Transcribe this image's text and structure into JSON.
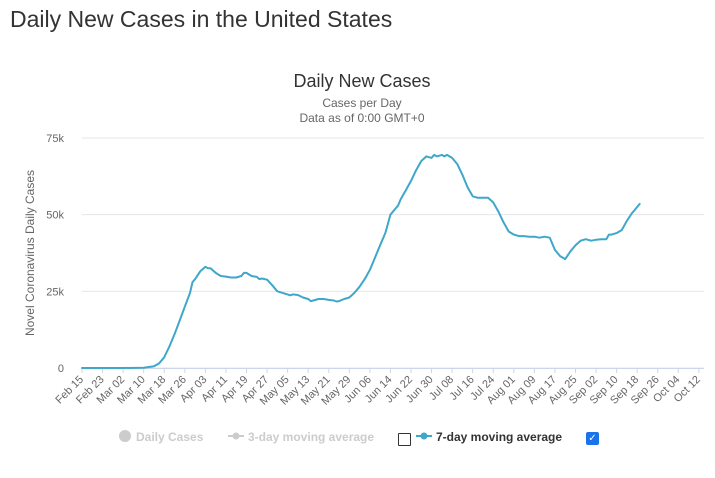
{
  "page": {
    "heading": "Daily New Cases in the United States"
  },
  "chart_data": {
    "type": "line",
    "title": "Daily New Cases",
    "subtitle_1": "Cases per Day",
    "subtitle_2": "Data as of 0:00 GMT+0",
    "ylabel": "Novel Coronavirus Daily Cases",
    "xlabel": "",
    "ylim": [
      0,
      75000
    ],
    "y_ticks": [
      0,
      25000,
      50000,
      75000
    ],
    "y_tick_labels": [
      "0",
      "25k",
      "50k",
      "75k"
    ],
    "x_tick_labels": [
      "Feb 15",
      "Feb 23",
      "Mar 02",
      "Mar 10",
      "Mar 18",
      "Mar 26",
      "Apr 03",
      "Apr 11",
      "Apr 19",
      "Apr 27",
      "May 05",
      "May 13",
      "May 21",
      "May 29",
      "Jun 06",
      "Jun 14",
      "Jun 22",
      "Jun 30",
      "Jul 08",
      "Jul 16",
      "Jul 24",
      "Aug 01",
      "Aug 09",
      "Aug 17",
      "Aug 25",
      "Sep 02",
      "Sep 10",
      "Sep 18",
      "Sep 26",
      "Oct 04",
      "Oct 12"
    ],
    "x_tick_day_index": [
      0,
      8,
      16,
      24,
      32,
      40,
      48,
      56,
      64,
      72,
      80,
      88,
      96,
      104,
      112,
      120,
      128,
      136,
      144,
      152,
      160,
      168,
      176,
      184,
      192,
      200,
      208,
      216,
      224,
      232,
      240
    ],
    "x_range_days": [
      0,
      242
    ],
    "grid": "horizontal",
    "series": [
      {
        "name": "7-day moving average",
        "color": "#3fa7c9",
        "points": [
          [
            0,
            0
          ],
          [
            8,
            0
          ],
          [
            16,
            0
          ],
          [
            24,
            100
          ],
          [
            28,
            600
          ],
          [
            30,
            1500
          ],
          [
            32,
            3500
          ],
          [
            34,
            7000
          ],
          [
            36,
            11000
          ],
          [
            38,
            15500
          ],
          [
            40,
            20000
          ],
          [
            42,
            24500
          ],
          [
            43,
            28000
          ],
          [
            44,
            29000
          ],
          [
            46,
            31500
          ],
          [
            48,
            33000
          ],
          [
            49,
            32500
          ],
          [
            50,
            32500
          ],
          [
            52,
            31000
          ],
          [
            54,
            30000
          ],
          [
            56,
            29800
          ],
          [
            58,
            29500
          ],
          [
            60,
            29500
          ],
          [
            62,
            30000
          ],
          [
            63,
            31000
          ],
          [
            64,
            31000
          ],
          [
            65,
            30500
          ],
          [
            66,
            30000
          ],
          [
            68,
            29700
          ],
          [
            69,
            29000
          ],
          [
            70,
            29200
          ],
          [
            72,
            28800
          ],
          [
            74,
            27000
          ],
          [
            76,
            25000
          ],
          [
            78,
            24500
          ],
          [
            80,
            24000
          ],
          [
            81,
            23700
          ],
          [
            82,
            24000
          ],
          [
            84,
            23800
          ],
          [
            86,
            23000
          ],
          [
            88,
            22500
          ],
          [
            89,
            21800
          ],
          [
            90,
            22000
          ],
          [
            92,
            22500
          ],
          [
            94,
            22500
          ],
          [
            96,
            22200
          ],
          [
            98,
            22000
          ],
          [
            99,
            21700
          ],
          [
            100,
            21800
          ],
          [
            102,
            22500
          ],
          [
            104,
            23000
          ],
          [
            106,
            24500
          ],
          [
            108,
            26500
          ],
          [
            110,
            29000
          ],
          [
            112,
            32000
          ],
          [
            114,
            36000
          ],
          [
            116,
            40000
          ],
          [
            118,
            44000
          ],
          [
            119,
            47000
          ],
          [
            120,
            50000
          ],
          [
            122,
            52000
          ],
          [
            123,
            53000
          ],
          [
            124,
            55000
          ],
          [
            126,
            58000
          ],
          [
            128,
            61000
          ],
          [
            130,
            64500
          ],
          [
            132,
            67500
          ],
          [
            134,
            69000
          ],
          [
            136,
            68500
          ],
          [
            137,
            69500
          ],
          [
            138,
            69000
          ],
          [
            140,
            69500
          ],
          [
            141,
            69000
          ],
          [
            142,
            69500
          ],
          [
            144,
            68500
          ],
          [
            146,
            66500
          ],
          [
            148,
            63000
          ],
          [
            150,
            59000
          ],
          [
            152,
            56000
          ],
          [
            154,
            55500
          ],
          [
            156,
            55500
          ],
          [
            158,
            55500
          ],
          [
            160,
            54000
          ],
          [
            162,
            51000
          ],
          [
            164,
            47500
          ],
          [
            166,
            44500
          ],
          [
            168,
            43500
          ],
          [
            170,
            43000
          ],
          [
            172,
            43000
          ],
          [
            174,
            42800
          ],
          [
            176,
            42800
          ],
          [
            178,
            42500
          ],
          [
            180,
            42800
          ],
          [
            182,
            42500
          ],
          [
            184,
            38500
          ],
          [
            186,
            36500
          ],
          [
            188,
            35500
          ],
          [
            190,
            38000
          ],
          [
            192,
            40000
          ],
          [
            194,
            41500
          ],
          [
            196,
            42000
          ],
          [
            198,
            41500
          ],
          [
            200,
            41800
          ],
          [
            202,
            42000
          ],
          [
            204,
            42000
          ],
          [
            205,
            43500
          ],
          [
            206,
            43500
          ],
          [
            208,
            44000
          ],
          [
            210,
            45000
          ],
          [
            212,
            48000
          ],
          [
            214,
            50500
          ],
          [
            215,
            51500
          ],
          [
            217,
            53500
          ]
        ]
      }
    ],
    "legend": {
      "position": "bottom-center",
      "items": [
        {
          "label": "Daily Cases",
          "enabled": false,
          "color": "#cccccc"
        },
        {
          "label": "3-day moving average",
          "enabled": false,
          "color": "#cccccc"
        },
        {
          "label": "7-day moving average",
          "enabled": true,
          "color": "#3fa7c9",
          "checked": true
        }
      ],
      "empty_checkbox_checked": false,
      "checkmark": "✓"
    },
    "colors": {
      "line": "#3fa7c9",
      "grid": "#e6e6e6",
      "axis_text": "#666666",
      "title": "#333333"
    }
  }
}
